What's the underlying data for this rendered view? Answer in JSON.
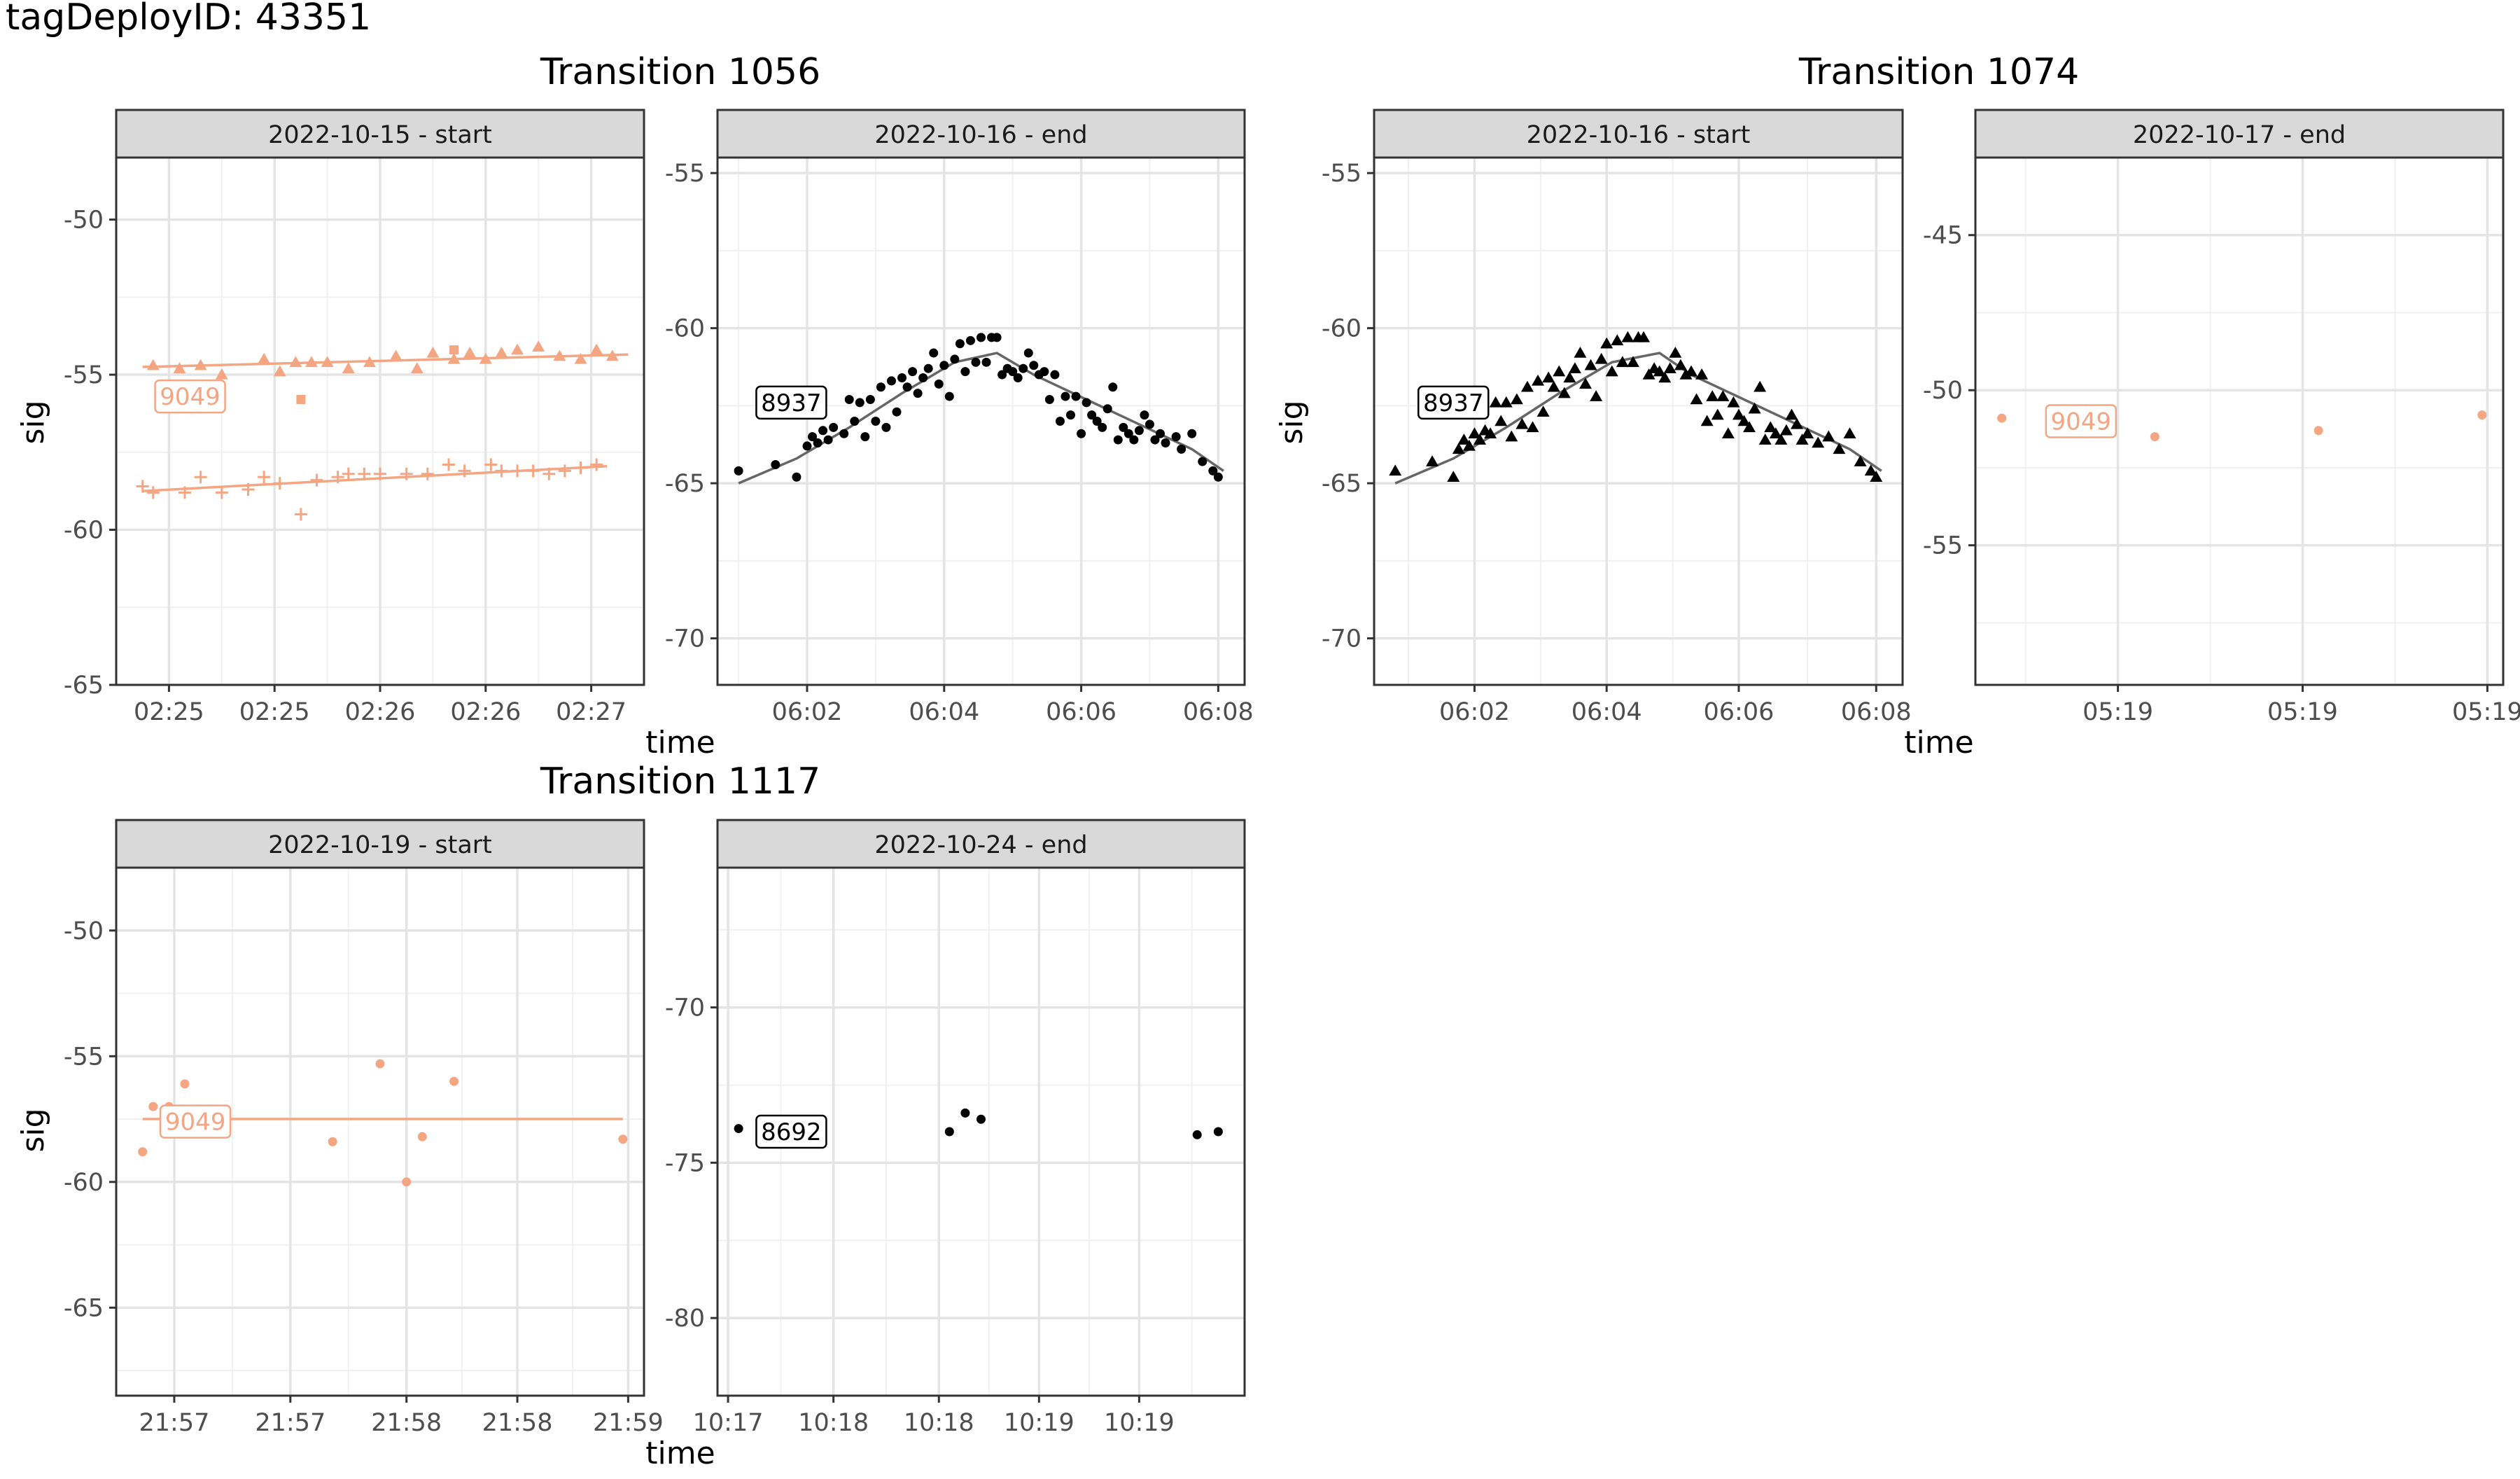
{
  "figure_title": "tagDeployID: 43351",
  "colors": {
    "orange": "#F4A582",
    "black": "#000000",
    "smooth_black": "#666666"
  },
  "chart_data": [
    {
      "type": "scatter",
      "group": "Transition 1056",
      "strip": "2022-10-15 - start",
      "ylabel": "sig",
      "xlabel": "",
      "xlim": [
        0,
        1
      ],
      "ylim": [
        -65,
        -48
      ],
      "xticks": [
        {
          "v": 0.1,
          "label": "02:25"
        },
        {
          "v": 0.3,
          "label": "02:25"
        },
        {
          "v": 0.5,
          "label": "02:26"
        },
        {
          "v": 0.7,
          "label": "02:26"
        },
        {
          "v": 0.9,
          "label": "02:27"
        }
      ],
      "yticks": [
        -65,
        -60,
        -55,
        -50
      ],
      "series": [
        {
          "id": "9049",
          "shape": "triangle",
          "color": "#F4A582",
          "x": [
            0.07,
            0.12,
            0.16,
            0.2,
            0.28,
            0.31,
            0.34,
            0.37,
            0.4,
            0.44,
            0.48,
            0.53,
            0.57,
            0.6,
            0.64,
            0.67,
            0.7,
            0.73,
            0.76,
            0.8,
            0.84,
            0.88,
            0.91,
            0.94
          ],
          "y": [
            -54.7,
            -54.8,
            -54.7,
            -55.0,
            -54.5,
            -54.9,
            -54.6,
            -54.6,
            -54.6,
            -54.8,
            -54.6,
            -54.4,
            -54.8,
            -54.3,
            -54.5,
            -54.3,
            -54.5,
            -54.3,
            -54.2,
            -54.1,
            -54.4,
            -54.5,
            -54.2,
            -54.4
          ],
          "smooth": [
            [
              0.05,
              -54.75
            ],
            [
              0.97,
              -54.35
            ]
          ],
          "label": {
            "text": "9049",
            "x": 0.14,
            "y": -55.7
          }
        },
        {
          "id": "9049-square",
          "shape": "square",
          "color": "#F4A582",
          "x": [
            0.35,
            0.64
          ],
          "y": [
            -55.8,
            -54.2
          ]
        },
        {
          "id": "9049-plus",
          "shape": "plus",
          "color": "#F4A582",
          "x": [
            0.05,
            0.07,
            0.13,
            0.16,
            0.2,
            0.25,
            0.28,
            0.31,
            0.35,
            0.38,
            0.42,
            0.44,
            0.47,
            0.5,
            0.55,
            0.59,
            0.63,
            0.66,
            0.71,
            0.73,
            0.76,
            0.79,
            0.82,
            0.85,
            0.88,
            0.91
          ],
          "y": [
            -58.6,
            -58.8,
            -58.8,
            -58.3,
            -58.8,
            -58.7,
            -58.3,
            -58.5,
            -59.5,
            -58.4,
            -58.3,
            -58.2,
            -58.2,
            -58.2,
            -58.2,
            -58.2,
            -57.9,
            -58.1,
            -57.9,
            -58.1,
            -58.1,
            -58.1,
            -58.2,
            -58.1,
            -58.0,
            -57.9
          ],
          "smooth": [
            [
              0.05,
              -58.75
            ],
            [
              0.93,
              -57.95
            ]
          ]
        }
      ]
    },
    {
      "type": "scatter",
      "group": "Transition 1056",
      "strip": "2022-10-16 - end",
      "ylabel": "",
      "xlabel": "time",
      "xlim": [
        0,
        1
      ],
      "ylim": [
        -71.5,
        -54.5
      ],
      "xticks": [
        {
          "v": 0.17,
          "label": "06:02"
        },
        {
          "v": 0.43,
          "label": "06:04"
        },
        {
          "v": 0.69,
          "label": "06:06"
        },
        {
          "v": 0.95,
          "label": "06:08"
        }
      ],
      "yticks": [
        -70,
        -65,
        -60,
        -55
      ],
      "series": [
        {
          "id": "8937",
          "shape": "circle",
          "color": "#000000",
          "x": [
            0.04,
            0.11,
            0.15,
            0.17,
            0.18,
            0.19,
            0.2,
            0.21,
            0.22,
            0.24,
            0.25,
            0.26,
            0.27,
            0.28,
            0.29,
            0.3,
            0.31,
            0.32,
            0.33,
            0.34,
            0.35,
            0.36,
            0.37,
            0.38,
            0.39,
            0.4,
            0.41,
            0.42,
            0.43,
            0.44,
            0.45,
            0.46,
            0.47,
            0.48,
            0.49,
            0.5,
            0.51,
            0.52,
            0.53,
            0.54,
            0.55,
            0.56,
            0.57,
            0.58,
            0.59,
            0.6,
            0.61,
            0.62,
            0.63,
            0.64,
            0.65,
            0.66,
            0.67,
            0.68,
            0.69,
            0.7,
            0.71,
            0.72,
            0.73,
            0.74,
            0.75,
            0.76,
            0.77,
            0.78,
            0.79,
            0.8,
            0.81,
            0.82,
            0.83,
            0.84,
            0.85,
            0.87,
            0.88,
            0.9,
            0.92,
            0.94,
            0.95
          ],
          "y": [
            -64.6,
            -64.4,
            -64.8,
            -63.8,
            -63.5,
            -63.7,
            -63.3,
            -63.6,
            -63.2,
            -63.4,
            -62.3,
            -63.0,
            -62.4,
            -63.5,
            -62.3,
            -63.0,
            -61.9,
            -63.2,
            -61.7,
            -62.7,
            -61.6,
            -61.9,
            -61.4,
            -62.1,
            -61.6,
            -61.3,
            -60.8,
            -61.8,
            -61.2,
            -62.2,
            -61.0,
            -60.5,
            -61.4,
            -60.4,
            -61.1,
            -60.3,
            -61.1,
            -60.3,
            -60.3,
            -61.5,
            -61.3,
            -61.4,
            -61.6,
            -61.3,
            -60.8,
            -61.2,
            -61.5,
            -61.4,
            -62.3,
            -61.5,
            -63.0,
            -62.2,
            -62.8,
            -62.2,
            -63.4,
            -62.4,
            -62.8,
            -63.0,
            -63.2,
            -62.6,
            -61.9,
            -63.6,
            -63.2,
            -63.4,
            -63.6,
            -63.3,
            -62.8,
            -63.1,
            -63.6,
            -63.4,
            -63.7,
            -63.5,
            -63.9,
            -63.4,
            -64.3,
            -64.6,
            -64.8
          ],
          "smooth": [
            [
              0.04,
              -65.0
            ],
            [
              0.15,
              -64.2
            ],
            [
              0.25,
              -63.2
            ],
            [
              0.35,
              -62.1
            ],
            [
              0.45,
              -61.1
            ],
            [
              0.53,
              -60.8
            ],
            [
              0.6,
              -61.5
            ],
            [
              0.7,
              -62.3
            ],
            [
              0.8,
              -63.1
            ],
            [
              0.9,
              -63.9
            ],
            [
              0.96,
              -64.6
            ]
          ],
          "label": {
            "text": "8937",
            "x": 0.14,
            "y": -62.4
          }
        }
      ]
    },
    {
      "type": "scatter",
      "group": "Transition 1074",
      "strip": "2022-10-16 - start",
      "ylabel": "sig",
      "xlabel": "",
      "xlim": [
        0,
        1
      ],
      "ylim": [
        -71.5,
        -54.5
      ],
      "xticks": [
        {
          "v": 0.19,
          "label": "06:02"
        },
        {
          "v": 0.44,
          "label": "06:04"
        },
        {
          "v": 0.69,
          "label": "06:06"
        },
        {
          "v": 0.95,
          "label": "06:08"
        }
      ],
      "yticks": [
        -70,
        -65,
        -60,
        -55
      ],
      "series": [
        {
          "id": "8937",
          "shape": "triangle",
          "color": "#000000",
          "x": [
            0.04,
            0.11,
            0.15,
            0.16,
            0.17,
            0.18,
            0.19,
            0.2,
            0.21,
            0.22,
            0.23,
            0.24,
            0.25,
            0.26,
            0.27,
            0.28,
            0.29,
            0.3,
            0.31,
            0.32,
            0.33,
            0.34,
            0.35,
            0.36,
            0.37,
            0.38,
            0.39,
            0.4,
            0.41,
            0.42,
            0.43,
            0.44,
            0.45,
            0.46,
            0.47,
            0.48,
            0.49,
            0.5,
            0.51,
            0.52,
            0.53,
            0.54,
            0.55,
            0.56,
            0.57,
            0.58,
            0.59,
            0.6,
            0.61,
            0.62,
            0.63,
            0.64,
            0.65,
            0.66,
            0.67,
            0.68,
            0.69,
            0.7,
            0.71,
            0.72,
            0.73,
            0.74,
            0.75,
            0.76,
            0.77,
            0.78,
            0.79,
            0.8,
            0.81,
            0.82,
            0.84,
            0.86,
            0.88,
            0.9,
            0.92,
            0.94,
            0.95
          ],
          "y": [
            -64.6,
            -64.3,
            -64.8,
            -63.9,
            -63.6,
            -63.8,
            -63.4,
            -63.6,
            -63.3,
            -63.4,
            -62.4,
            -63.0,
            -62.4,
            -63.5,
            -62.3,
            -63.1,
            -61.9,
            -63.2,
            -61.7,
            -62.7,
            -61.6,
            -61.9,
            -61.4,
            -62.1,
            -61.6,
            -61.3,
            -60.8,
            -61.8,
            -61.2,
            -62.2,
            -61.0,
            -60.5,
            -61.4,
            -60.4,
            -61.1,
            -60.3,
            -61.1,
            -60.3,
            -60.3,
            -61.5,
            -61.3,
            -61.4,
            -61.6,
            -61.3,
            -60.8,
            -61.2,
            -61.5,
            -61.4,
            -62.3,
            -61.5,
            -63.0,
            -62.2,
            -62.8,
            -62.2,
            -63.4,
            -62.4,
            -62.8,
            -63.0,
            -63.2,
            -62.6,
            -61.9,
            -63.6,
            -63.2,
            -63.4,
            -63.6,
            -63.3,
            -62.8,
            -63.1,
            -63.6,
            -63.4,
            -63.7,
            -63.5,
            -63.9,
            -63.4,
            -64.3,
            -64.6,
            -64.8
          ],
          "smooth": [
            [
              0.04,
              -65.0
            ],
            [
              0.15,
              -64.2
            ],
            [
              0.25,
              -63.2
            ],
            [
              0.35,
              -62.1
            ],
            [
              0.45,
              -61.1
            ],
            [
              0.54,
              -60.8
            ],
            [
              0.6,
              -61.5
            ],
            [
              0.7,
              -62.3
            ],
            [
              0.8,
              -63.1
            ],
            [
              0.9,
              -63.9
            ],
            [
              0.96,
              -64.6
            ]
          ],
          "label": {
            "text": "8937",
            "x": 0.15,
            "y": -62.4
          }
        }
      ]
    },
    {
      "type": "scatter",
      "group": "Transition 1074",
      "strip": "2022-10-17 - end",
      "ylabel": "",
      "xlabel": "time",
      "xlim": [
        0,
        1
      ],
      "ylim": [
        -59.5,
        -42.5
      ],
      "xticks": [
        {
          "v": 0.27,
          "label": "05:19"
        },
        {
          "v": 0.62,
          "label": "05:19"
        },
        {
          "v": 0.97,
          "label": "05:19"
        }
      ],
      "yticks": [
        -55,
        -50,
        -45
      ],
      "series": [
        {
          "id": "9049",
          "shape": "circle",
          "color": "#F4A582",
          "x": [
            0.05,
            0.34,
            0.65,
            0.96
          ],
          "y": [
            -50.9,
            -51.5,
            -51.3,
            -50.8
          ],
          "label": {
            "text": "9049",
            "x": 0.2,
            "y": -51.0
          }
        }
      ]
    },
    {
      "type": "scatter",
      "group": "Transition 1117",
      "strip": "2022-10-19 - start",
      "ylabel": "sig",
      "xlabel": "",
      "xlim": [
        0,
        1
      ],
      "ylim": [
        -68.5,
        -47.5
      ],
      "xticks": [
        {
          "v": 0.11,
          "label": "21:57"
        },
        {
          "v": 0.33,
          "label": "21:57"
        },
        {
          "v": 0.55,
          "label": "21:58"
        },
        {
          "v": 0.76,
          "label": "21:58"
        },
        {
          "v": 0.97,
          "label": "21:59"
        }
      ],
      "yticks": [
        -65,
        -60,
        -55,
        -50
      ],
      "series": [
        {
          "id": "9049",
          "shape": "circle",
          "color": "#F4A582",
          "x": [
            0.05,
            0.07,
            0.1,
            0.13,
            0.41,
            0.5,
            0.55,
            0.58,
            0.64,
            0.96
          ],
          "y": [
            -58.8,
            -57.0,
            -57.0,
            -56.1,
            -58.4,
            -55.3,
            -60.0,
            -58.2,
            -56.0,
            -58.3
          ],
          "smooth": [
            [
              0.05,
              -57.5
            ],
            [
              0.96,
              -57.5
            ]
          ],
          "label": {
            "text": "9049",
            "x": 0.15,
            "y": -57.6
          }
        }
      ]
    },
    {
      "type": "scatter",
      "group": "Transition 1117",
      "strip": "2022-10-24 - end",
      "ylabel": "",
      "xlabel": "time",
      "xlim": [
        0,
        1
      ],
      "ylim": [
        -82.5,
        -65.5
      ],
      "xticks": [
        {
          "v": 0.02,
          "label": "10:17"
        },
        {
          "v": 0.22,
          "label": "10:18"
        },
        {
          "v": 0.42,
          "label": "10:18"
        },
        {
          "v": 0.61,
          "label": "10:19"
        },
        {
          "v": 0.8,
          "label": "10:19"
        }
      ],
      "yticks": [
        -80,
        -75,
        -70
      ],
      "series": [
        {
          "id": "8692",
          "shape": "circle",
          "color": "#000000",
          "x": [
            0.04,
            0.44,
            0.47,
            0.5,
            0.91,
            0.95
          ],
          "y": [
            -73.9,
            -74.0,
            -73.4,
            -73.6,
            -74.1,
            -74.0
          ],
          "label": {
            "text": "8692",
            "x": 0.14,
            "y": -74.0
          }
        }
      ]
    }
  ]
}
